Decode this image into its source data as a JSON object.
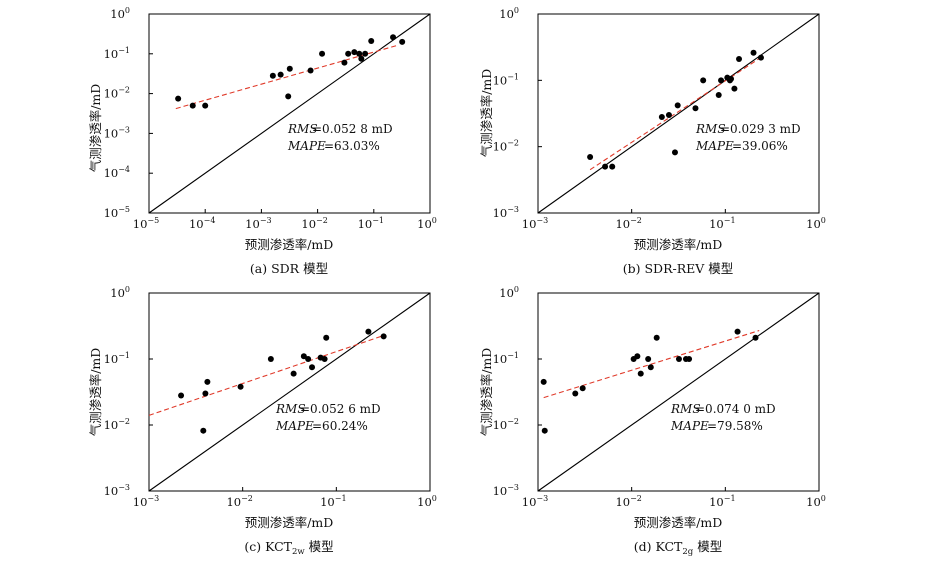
{
  "figure": {
    "colors": {
      "points": "#000000",
      "fit_line": "#e03a2a",
      "identity_line": "#000000",
      "axis": "#000000"
    },
    "panels": [
      {
        "id": "a",
        "caption": "(a) SDR 模型"
      },
      {
        "id": "b",
        "caption": "(b) SDR-REV 模型"
      },
      {
        "id": "c",
        "caption_main": "(c) KCT",
        "caption_sub": "2w",
        "caption_tail": " 模型"
      },
      {
        "id": "d",
        "caption_main": "(d) KCT",
        "caption_sub": "2g",
        "caption_tail": " 模型"
      }
    ]
  },
  "chart_data": [
    {
      "type": "scatter",
      "scale": "log10",
      "xlabel": "预测渗透率/mD",
      "ylabel": "气测渗透率/mD",
      "xlim": [
        1e-05,
        1
      ],
      "ylim": [
        1e-05,
        1
      ],
      "x_ticks": [
        {
          "base": "10",
          "exp": "−5"
        },
        {
          "base": "10",
          "exp": "−4"
        },
        {
          "base": "10",
          "exp": "−3"
        },
        {
          "base": "10",
          "exp": "−2"
        },
        {
          "base": "10",
          "exp": "−1"
        },
        {
          "base": "10",
          "exp": "0"
        }
      ],
      "y_ticks": [
        {
          "base": "10",
          "exp": "−5"
        },
        {
          "base": "10",
          "exp": "−4"
        },
        {
          "base": "10",
          "exp": "−3"
        },
        {
          "base": "10",
          "exp": "−2"
        },
        {
          "base": "10",
          "exp": "−1"
        },
        {
          "base": "10",
          "exp": "0"
        }
      ],
      "rms_label": "RMS",
      "rms_value": "=0.052 8 mD",
      "mape_label": "MAPE",
      "mape_value": "=63.03%",
      "points": [
        [
          3.3e-05,
          0.0075
        ],
        [
          6e-05,
          0.005
        ],
        [
          0.0001,
          0.005
        ],
        [
          0.0016,
          0.028
        ],
        [
          0.0022,
          0.03
        ],
        [
          0.003,
          0.0085
        ],
        [
          0.0032,
          0.042
        ],
        [
          0.0075,
          0.038
        ],
        [
          0.012,
          0.1
        ],
        [
          0.03,
          0.06
        ],
        [
          0.035,
          0.1
        ],
        [
          0.045,
          0.11
        ],
        [
          0.055,
          0.1
        ],
        [
          0.06,
          0.075
        ],
        [
          0.07,
          0.1
        ],
        [
          0.09,
          0.21
        ],
        [
          0.22,
          0.26
        ],
        [
          0.32,
          0.2
        ]
      ],
      "fit": [
        [
          3e-05,
          0.0042
        ],
        [
          0.25,
          0.16
        ]
      ]
    },
    {
      "type": "scatter",
      "scale": "log10",
      "xlabel": "预测渗透率/mD",
      "ylabel": "气测渗透率/mD",
      "xlim": [
        0.001,
        1
      ],
      "ylim": [
        0.001,
        1
      ],
      "x_ticks": [
        {
          "base": "10",
          "exp": "−3"
        },
        {
          "base": "10",
          "exp": "−2"
        },
        {
          "base": "10",
          "exp": "−1"
        },
        {
          "base": "10",
          "exp": "0"
        }
      ],
      "y_ticks": [
        {
          "base": "10",
          "exp": "−3"
        },
        {
          "base": "10",
          "exp": "−2"
        },
        {
          "base": "10",
          "exp": "−1"
        },
        {
          "base": "10",
          "exp": "0"
        }
      ],
      "rms_label": "RMS",
      "rms_value": "=0.029 3 mD",
      "mape_label": "MAPE",
      "mape_value": "=39.06%",
      "points": [
        [
          0.0036,
          0.007
        ],
        [
          0.0052,
          0.005
        ],
        [
          0.0062,
          0.005
        ],
        [
          0.021,
          0.028
        ],
        [
          0.025,
          0.03
        ],
        [
          0.029,
          0.0082
        ],
        [
          0.031,
          0.042
        ],
        [
          0.048,
          0.038
        ],
        [
          0.058,
          0.1
        ],
        [
          0.085,
          0.06
        ],
        [
          0.09,
          0.1
        ],
        [
          0.105,
          0.11
        ],
        [
          0.112,
          0.1
        ],
        [
          0.115,
          0.105
        ],
        [
          0.125,
          0.075
        ],
        [
          0.14,
          0.21
        ],
        [
          0.2,
          0.26
        ],
        [
          0.24,
          0.22
        ]
      ],
      "fit": [
        [
          0.0036,
          0.0045
        ],
        [
          0.25,
          0.23
        ]
      ]
    },
    {
      "type": "scatter",
      "scale": "log10",
      "xlabel": "预测渗透率/mD",
      "ylabel": "气测渗透率/mD",
      "xlim": [
        0.001,
        1
      ],
      "ylim": [
        0.001,
        1
      ],
      "x_ticks": [
        {
          "base": "10",
          "exp": "−3"
        },
        {
          "base": "10",
          "exp": "−2"
        },
        {
          "base": "10",
          "exp": "−1"
        },
        {
          "base": "10",
          "exp": "0"
        }
      ],
      "y_ticks": [
        {
          "base": "10",
          "exp": "−3"
        },
        {
          "base": "10",
          "exp": "−2"
        },
        {
          "base": "10",
          "exp": "−1"
        },
        {
          "base": "10",
          "exp": "0"
        }
      ],
      "rms_label": "RMS",
      "rms_value": "=0.052 6 mD",
      "mape_label": "MAPE",
      "mape_value": "=60.24%",
      "points": [
        [
          0.0022,
          0.028
        ],
        [
          0.0038,
          0.0082
        ],
        [
          0.004,
          0.03
        ],
        [
          0.0042,
          0.045
        ],
        [
          0.0095,
          0.038
        ],
        [
          0.02,
          0.1
        ],
        [
          0.035,
          0.06
        ],
        [
          0.045,
          0.11
        ],
        [
          0.05,
          0.1
        ],
        [
          0.055,
          0.075
        ],
        [
          0.068,
          0.105
        ],
        [
          0.075,
          0.1
        ],
        [
          0.078,
          0.21
        ],
        [
          0.22,
          0.26
        ],
        [
          0.32,
          0.22
        ]
      ],
      "fit": [
        [
          0.001,
          0.014
        ],
        [
          0.3,
          0.22
        ]
      ]
    },
    {
      "type": "scatter",
      "scale": "log10",
      "xlabel": "预测渗透率/mD",
      "ylabel": "气测渗透率/mD",
      "xlim": [
        0.001,
        1
      ],
      "ylim": [
        0.001,
        1
      ],
      "x_ticks": [
        {
          "base": "10",
          "exp": "−3"
        },
        {
          "base": "10",
          "exp": "−2"
        },
        {
          "base": "10",
          "exp": "−1"
        },
        {
          "base": "10",
          "exp": "0"
        }
      ],
      "y_ticks": [
        {
          "base": "10",
          "exp": "−3"
        },
        {
          "base": "10",
          "exp": "−2"
        },
        {
          "base": "10",
          "exp": "−1"
        },
        {
          "base": "10",
          "exp": "0"
        }
      ],
      "rms_label": "RMS",
      "rms_value": "=0.074 0 mD",
      "mape_label": "MAPE",
      "mape_value": "=79.58%",
      "points": [
        [
          0.00115,
          0.045
        ],
        [
          0.00118,
          0.0082
        ],
        [
          0.0025,
          0.03
        ],
        [
          0.003,
          0.036
        ],
        [
          0.0105,
          0.1
        ],
        [
          0.0115,
          0.11
        ],
        [
          0.0125,
          0.06
        ],
        [
          0.015,
          0.1
        ],
        [
          0.016,
          0.075
        ],
        [
          0.0185,
          0.21
        ],
        [
          0.032,
          0.1
        ],
        [
          0.038,
          0.1
        ],
        [
          0.041,
          0.1
        ],
        [
          0.135,
          0.26
        ],
        [
          0.21,
          0.21
        ]
      ],
      "fit": [
        [
          0.00115,
          0.026
        ],
        [
          0.23,
          0.27
        ]
      ]
    }
  ]
}
